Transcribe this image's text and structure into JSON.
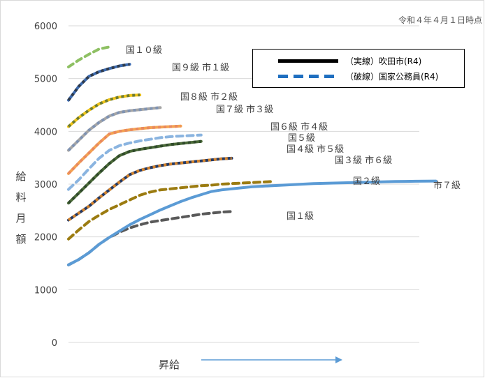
{
  "note": "令和４年４月１日時点",
  "axis": {
    "ylabel_chars": [
      "給",
      "料",
      "月",
      "額"
    ],
    "xlabel": "昇給"
  },
  "legend": {
    "items": [
      {
        "label": "（実線）吹田市(R4)",
        "style": "solid",
        "color": "#000000"
      },
      {
        "label": "（破線）国家公務員(R4)",
        "style": "dashed",
        "color": "#1f6fc0"
      }
    ]
  },
  "chart_data": {
    "type": "line",
    "title": "",
    "xlabel": "昇給",
    "ylabel": "給料月額",
    "ylim": [
      0,
      6000
    ],
    "yticks": [
      0,
      1000,
      2000,
      3000,
      4000,
      5000,
      6000
    ],
    "grid": false,
    "series": [
      {
        "name": "国１０級",
        "color": "#8ec063",
        "dash": "8 6",
        "x": [
          0,
          1,
          2,
          3,
          4
        ],
        "y": [
          5220,
          5350,
          5460,
          5560,
          5600
        ]
      },
      {
        "name": "国９級 市１級",
        "color": "#3c6bb0",
        "dash": "",
        "stripe": "#2f3b4c",
        "x": [
          0,
          1,
          2,
          3,
          4,
          5,
          6
        ],
        "y": [
          4590,
          4850,
          5040,
          5130,
          5190,
          5240,
          5270
        ]
      },
      {
        "name": "国８級 市２級",
        "color": "#f0c418",
        "dash": "",
        "stripe": "#6e7c30",
        "x": [
          0,
          1,
          2,
          3,
          4,
          5,
          6,
          7
        ],
        "y": [
          4090,
          4260,
          4400,
          4520,
          4600,
          4650,
          4680,
          4690
        ]
      },
      {
        "name": "国７級 市３級",
        "color": "#a6a6a6",
        "dash": "",
        "stripe": "#7f93b3",
        "x": [
          0,
          1,
          2,
          3,
          4,
          5,
          6,
          7,
          8,
          9
        ],
        "y": [
          3640,
          3830,
          4020,
          4170,
          4290,
          4360,
          4390,
          4410,
          4430,
          4450
        ]
      },
      {
        "name": "国６級 市４級",
        "color": "#f4a251",
        "dash": "",
        "stripe": "#e8895f",
        "x": [
          0,
          1,
          2,
          3,
          4,
          5,
          6,
          7,
          8,
          9,
          10,
          11
        ],
        "y": [
          3200,
          3400,
          3590,
          3780,
          3950,
          4000,
          4030,
          4050,
          4070,
          4080,
          4090,
          4100
        ]
      },
      {
        "name": "国５級",
        "color": "#8ab4e0",
        "dash": "9 6",
        "x": [
          0,
          1,
          2,
          3,
          4,
          5,
          6,
          7,
          8,
          9,
          10,
          11,
          12,
          13
        ],
        "y": [
          2900,
          3080,
          3290,
          3490,
          3640,
          3730,
          3780,
          3820,
          3850,
          3880,
          3900,
          3910,
          3920,
          3930
        ]
      },
      {
        "name": "国４級 市５級",
        "color": "#4b6a38",
        "dash": "",
        "stripe": "#2f4a2a",
        "x": [
          0,
          1,
          2,
          3,
          4,
          5,
          6,
          7,
          8,
          9,
          10,
          11,
          12,
          13
        ],
        "y": [
          2640,
          2830,
          3020,
          3210,
          3390,
          3540,
          3620,
          3660,
          3690,
          3720,
          3750,
          3770,
          3790,
          3810
        ]
      },
      {
        "name": "国３級 市６級",
        "color": "#253a64",
        "dash": "",
        "stripe": "#d4832b",
        "x": [
          0,
          1,
          2,
          3,
          4,
          5,
          6,
          7,
          8,
          9,
          10,
          11,
          12,
          13,
          14,
          15,
          16
        ],
        "y": [
          2320,
          2450,
          2580,
          2740,
          2890,
          3040,
          3180,
          3260,
          3310,
          3350,
          3380,
          3400,
          3420,
          3440,
          3460,
          3480,
          3490
        ]
      },
      {
        "name": "国２級",
        "color": "#9b7b10",
        "dash": "9 6",
        "x": [
          0,
          1,
          2,
          3,
          4,
          5,
          6,
          7,
          8,
          9,
          10,
          11,
          12,
          13,
          14,
          15,
          16,
          17,
          18,
          19,
          20
        ],
        "y": [
          1960,
          2130,
          2290,
          2410,
          2520,
          2610,
          2700,
          2790,
          2850,
          2890,
          2910,
          2930,
          2950,
          2970,
          2980,
          3000,
          3010,
          3020,
          3030,
          3040,
          3050
        ]
      },
      {
        "name": "国１級",
        "color": "#595959",
        "dash": "9 6",
        "x": [
          0,
          1,
          2,
          3,
          4,
          5,
          6,
          7,
          8,
          9,
          10,
          11,
          12,
          13,
          14,
          15,
          16
        ],
        "y": [
          1470,
          1570,
          1700,
          1860,
          1990,
          2090,
          2170,
          2230,
          2280,
          2310,
          2340,
          2370,
          2400,
          2430,
          2450,
          2470,
          2480
        ]
      },
      {
        "name": "市７級",
        "color": "#5b9bd5",
        "dash": "",
        "x": [
          0,
          1,
          2,
          3,
          4,
          5,
          6,
          7,
          8,
          9,
          10,
          11,
          12,
          13,
          14,
          15,
          16,
          17,
          18,
          19,
          20,
          21,
          22,
          23,
          24,
          25,
          26,
          27,
          28,
          29,
          30,
          31,
          32,
          33,
          34,
          35,
          36
        ],
        "y": [
          1470,
          1570,
          1700,
          1860,
          1990,
          2110,
          2230,
          2330,
          2420,
          2510,
          2590,
          2670,
          2740,
          2800,
          2860,
          2890,
          2910,
          2930,
          2950,
          2960,
          2970,
          2980,
          2990,
          3000,
          3010,
          3015,
          3020,
          3025,
          3030,
          3035,
          3040,
          3045,
          3050,
          3052,
          3054,
          3056,
          3058
        ]
      }
    ]
  }
}
